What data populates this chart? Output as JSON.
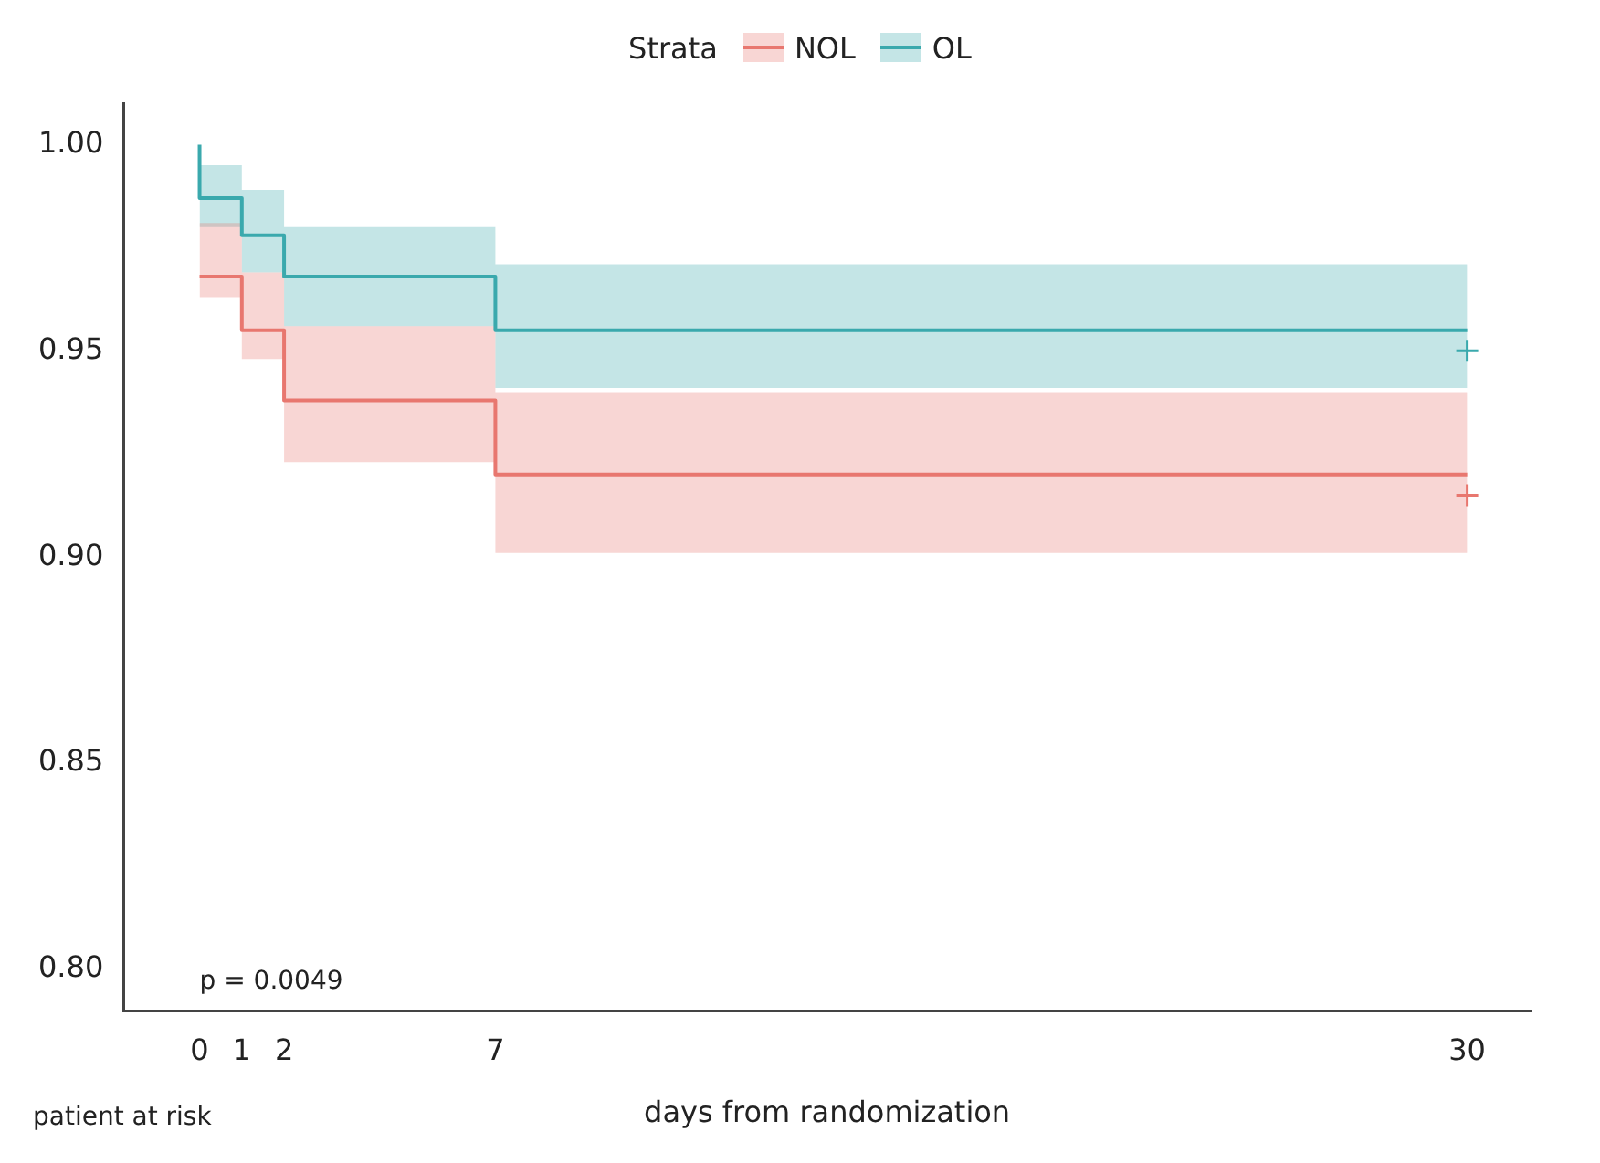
{
  "chart_data": {
    "type": "step",
    "xlabel": "days from randomization",
    "legend_title": "Strata",
    "legend": "top",
    "annotations": [
      "p = 0.0049",
      "patient at risk"
    ],
    "xlim": [
      -1.8,
      31.5
    ],
    "xticks": [
      0,
      1,
      2,
      7,
      30
    ],
    "ylim": [
      0.79,
      1.01
    ],
    "yticks": [
      {
        "value": 0.8,
        "label": "0.80"
      },
      {
        "value": 0.85,
        "label": "0.85"
      },
      {
        "value": 0.9,
        "label": "0.90"
      },
      {
        "value": 0.95,
        "label": "0.95"
      },
      {
        "value": 1.0,
        "label": "1.00"
      }
    ],
    "grid": false,
    "series": [
      {
        "name": "NOL",
        "color": "#e8776f",
        "x": [
          0,
          1,
          2,
          7,
          30
        ],
        "values": [
          0.968,
          0.955,
          0.938,
          0.92,
          0.92
        ],
        "lower": [
          0.963,
          0.948,
          0.923,
          0.901,
          0.901
        ],
        "upper": [
          0.981,
          0.969,
          0.956,
          0.94,
          0.94
        ]
      },
      {
        "name": "OL",
        "color": "#3aa9ad",
        "x": [
          0,
          0,
          1,
          2,
          7,
          30
        ],
        "values": [
          1.0,
          0.987,
          0.978,
          0.968,
          0.955,
          0.955
        ],
        "lower": [
          0.98,
          0.98,
          0.969,
          0.956,
          0.941,
          0.941
        ],
        "upper": [
          0.995,
          0.995,
          0.989,
          0.98,
          0.971,
          0.971
        ]
      },
      {
        "type": "scatter",
        "marker": "cross",
        "color": "#e8776f",
        "x": [
          30
        ],
        "values": [
          0.915
        ]
      },
      {
        "type": "scatter",
        "marker": "cross",
        "color": "#3aa9ad",
        "x": [
          30
        ],
        "values": [
          0.95
        ]
      }
    ]
  }
}
